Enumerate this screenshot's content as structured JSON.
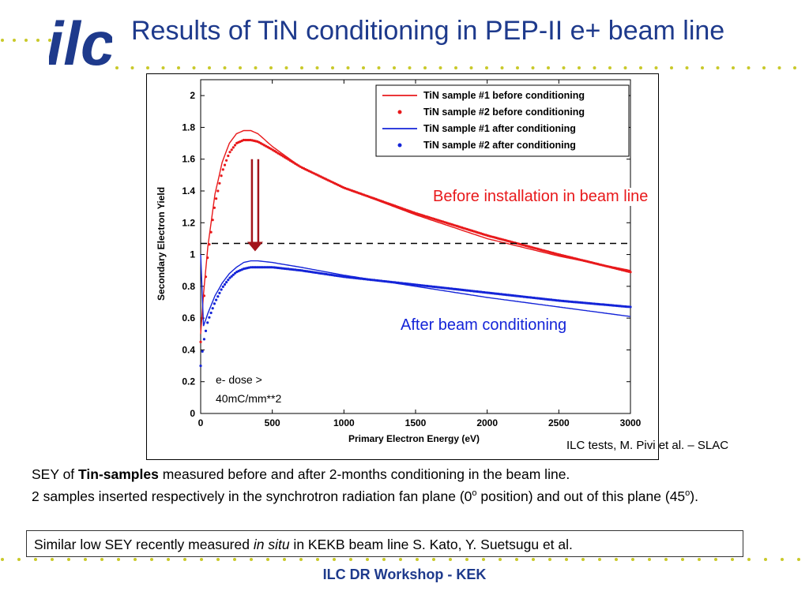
{
  "header": {
    "logo_text": "ilc",
    "title": "Results of TiN conditioning in PEP-II e+ beam line"
  },
  "colors": {
    "brand_blue": "#1e3a8c",
    "dot_yellow": "#c9c92a",
    "red": "#e8191b",
    "blue": "#1424d8",
    "arrow": "#a3141a"
  },
  "chart_data": {
    "type": "line",
    "xlabel": "Primary Electron Energy (eV)",
    "ylabel": "Secondary Electron Yield",
    "xlim": [
      0,
      3000
    ],
    "ylim": [
      0,
      2.1
    ],
    "xticks": [
      "0",
      "500",
      "1000",
      "1500",
      "2000",
      "2500",
      "3000"
    ],
    "yticks": [
      "0",
      "0.2",
      "0.4",
      "0.6",
      "0.8",
      "1",
      "1.2",
      "1.4",
      "1.6",
      "1.8",
      "2"
    ],
    "legend_position": "top-right",
    "grid": false,
    "series": [
      {
        "name": "TiN sample #1 before conditioning",
        "style": "line",
        "color": "#e8191b",
        "x": [
          0,
          20,
          50,
          100,
          150,
          200,
          250,
          300,
          350,
          400,
          500,
          700,
          1000,
          1500,
          2000,
          2500,
          3000
        ],
        "y": [
          0.5,
          0.75,
          1.05,
          1.38,
          1.58,
          1.7,
          1.76,
          1.78,
          1.78,
          1.76,
          1.68,
          1.55,
          1.42,
          1.25,
          1.1,
          0.99,
          0.9
        ]
      },
      {
        "name": "TiN sample #2 before conditioning",
        "style": "marker",
        "color": "#e8191b",
        "x": [
          0,
          20,
          50,
          100,
          150,
          200,
          250,
          300,
          350,
          400,
          500,
          700,
          1000,
          1500,
          2000,
          2500,
          3000
        ],
        "y": [
          0.45,
          0.7,
          1.0,
          1.32,
          1.52,
          1.64,
          1.7,
          1.72,
          1.72,
          1.71,
          1.66,
          1.55,
          1.42,
          1.26,
          1.12,
          1.0,
          0.89
        ]
      },
      {
        "name": "TiN sample #1 after conditioning",
        "style": "line",
        "color": "#1424d8",
        "x": [
          0,
          20,
          50,
          100,
          150,
          200,
          250,
          300,
          350,
          400,
          500,
          700,
          1000,
          1500,
          2000,
          2500,
          3000
        ],
        "y": [
          1.0,
          0.55,
          0.63,
          0.74,
          0.82,
          0.88,
          0.92,
          0.95,
          0.96,
          0.96,
          0.95,
          0.92,
          0.87,
          0.8,
          0.73,
          0.67,
          0.61
        ]
      },
      {
        "name": "TiN sample #2 after conditioning",
        "style": "marker",
        "color": "#1424d8",
        "x": [
          0,
          20,
          50,
          100,
          150,
          200,
          250,
          300,
          350,
          400,
          500,
          700,
          1000,
          1500,
          2000,
          2500,
          3000
        ],
        "y": [
          0.3,
          0.45,
          0.58,
          0.7,
          0.79,
          0.85,
          0.89,
          0.91,
          0.92,
          0.92,
          0.92,
          0.9,
          0.86,
          0.81,
          0.76,
          0.71,
          0.67
        ]
      }
    ],
    "reference_line_y": 1.07,
    "annotations": {
      "before": "Before installation in beam line",
      "after": "After beam conditioning",
      "dose_line1": "e- dose >",
      "dose_line2": "40mC/mm**2"
    }
  },
  "credit": "ILC tests, M. Pivi et al. – SLAC",
  "body": {
    "p1_pre": "SEY of ",
    "p1_bold": "Tin-samples",
    "p1_post": " measured before and after 2-months conditioning in the beam line.",
    "p2_a": "2 samples inserted respectively in the synchrotron radiation fan plane (0",
    "p2_sup1": "o",
    "p2_b": " position) and out of this plane (45",
    "p2_sup2": "o",
    "p2_c": ")."
  },
  "note": {
    "pre": "Similar low SEY recently measured ",
    "italic": "in situ",
    "post": " in KEKB beam line S. Kato, Y. Suetsugu et al."
  },
  "footer": "ILC DR Workshop - KEK"
}
